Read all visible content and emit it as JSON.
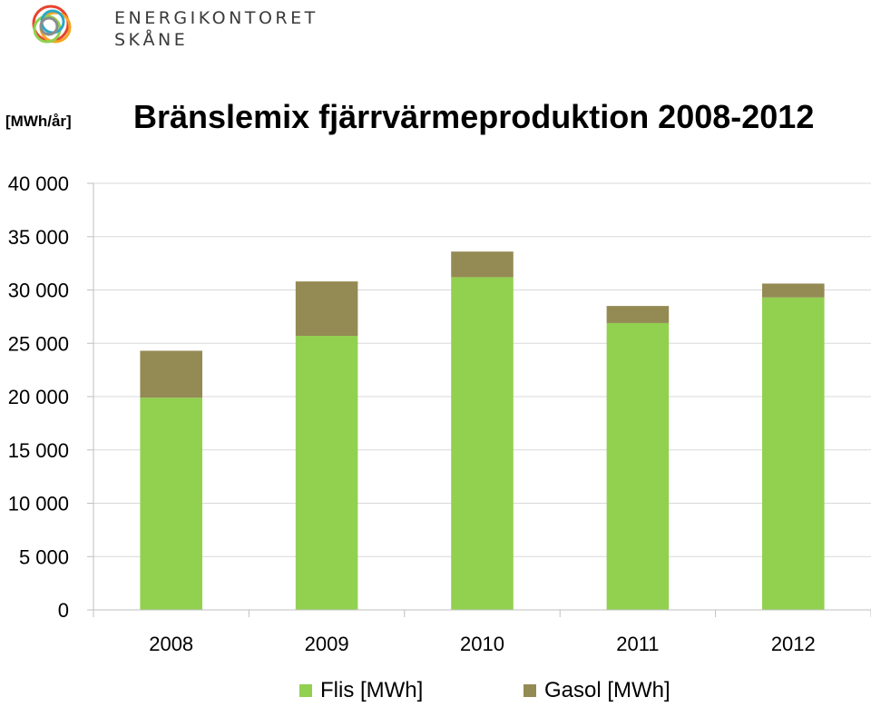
{
  "brand": {
    "line1": "ENERGIKONTORET",
    "line2": "SKÅNE",
    "ring_colors": [
      "#e7442f",
      "#f5a623",
      "#8fd14f",
      "#2ba7c9",
      "#8c8c8c"
    ]
  },
  "chart_data": {
    "type": "bar",
    "stacked": true,
    "title": "Bränslemix fjärrvärmeproduktion 2008-2012",
    "unit_label": "[MWh/år]",
    "xlabel": "",
    "ylabel": "",
    "categories": [
      "2008",
      "2009",
      "2010",
      "2011",
      "2012"
    ],
    "series": [
      {
        "name": "Flis [MWh]",
        "color": "#92d050",
        "values": [
          19900,
          25700,
          31200,
          26900,
          29300
        ]
      },
      {
        "name": "Gasol [MWh]",
        "color": "#948a54",
        "values": [
          4400,
          5100,
          2400,
          1600,
          1300
        ]
      }
    ],
    "ylim": [
      0,
      40000
    ],
    "yticks": [
      0,
      5000,
      10000,
      15000,
      20000,
      25000,
      30000,
      35000,
      40000
    ],
    "ytick_labels": [
      "0",
      "5 000",
      "10 000",
      "15 000",
      "20 000",
      "25 000",
      "30 000",
      "35 000",
      "40 000"
    ],
    "grid": true,
    "legend_position": "bottom"
  }
}
